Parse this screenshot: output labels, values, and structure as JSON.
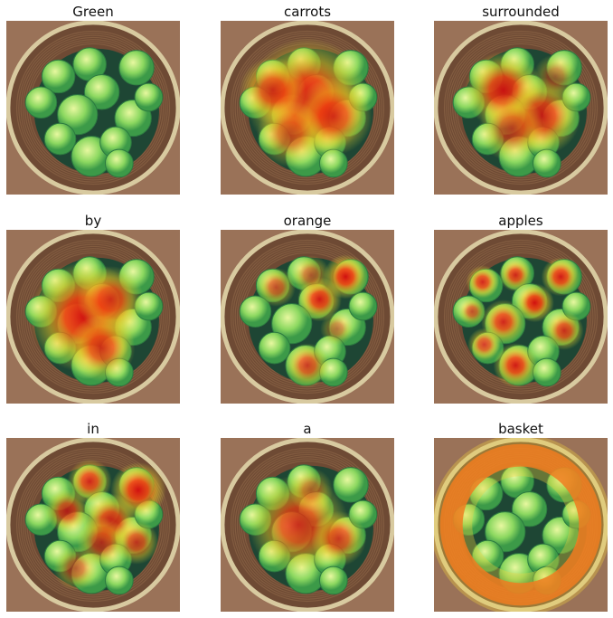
{
  "figure": {
    "panels": [
      {
        "title": "Green",
        "focus": "green-apples",
        "hotspots": []
      },
      {
        "title": "carrots",
        "focus": "center-diffuse",
        "hotspots": [
          [
            0.5,
            0.45,
            0.22,
            1.0
          ],
          [
            0.3,
            0.4,
            0.12,
            0.8
          ],
          [
            0.65,
            0.55,
            0.14,
            0.8
          ],
          [
            0.4,
            0.65,
            0.12,
            0.6
          ]
        ]
      },
      {
        "title": "surrounded",
        "focus": "center-ring",
        "hotspots": [
          [
            0.4,
            0.4,
            0.14,
            0.95
          ],
          [
            0.62,
            0.55,
            0.14,
            0.9
          ],
          [
            0.45,
            0.62,
            0.12,
            0.7
          ],
          [
            0.7,
            0.32,
            0.08,
            0.5
          ]
        ]
      },
      {
        "title": "by",
        "focus": "center-apples",
        "hotspots": [
          [
            0.45,
            0.5,
            0.2,
            1.0
          ],
          [
            0.6,
            0.4,
            0.12,
            0.8
          ],
          [
            0.55,
            0.68,
            0.12,
            0.8
          ]
        ]
      },
      {
        "title": "orange",
        "focus": "scattered-apples",
        "hotspots": [
          [
            0.72,
            0.27,
            0.08,
            1.0
          ],
          [
            0.57,
            0.4,
            0.08,
            0.95
          ],
          [
            0.32,
            0.33,
            0.07,
            0.7
          ],
          [
            0.52,
            0.26,
            0.07,
            0.6
          ],
          [
            0.5,
            0.78,
            0.08,
            0.8
          ],
          [
            0.67,
            0.57,
            0.06,
            0.5
          ]
        ]
      },
      {
        "title": "apples",
        "focus": "each-apple",
        "hotspots": [
          [
            0.28,
            0.3,
            0.06,
            0.9
          ],
          [
            0.47,
            0.26,
            0.06,
            0.9
          ],
          [
            0.73,
            0.27,
            0.07,
            0.95
          ],
          [
            0.58,
            0.42,
            0.07,
            1.0
          ],
          [
            0.4,
            0.53,
            0.08,
            0.9
          ],
          [
            0.75,
            0.58,
            0.07,
            0.85
          ],
          [
            0.47,
            0.78,
            0.08,
            0.95
          ],
          [
            0.29,
            0.66,
            0.06,
            0.8
          ],
          [
            0.22,
            0.47,
            0.05,
            0.7
          ]
        ]
      },
      {
        "title": "in",
        "focus": "apples-top",
        "hotspots": [
          [
            0.48,
            0.25,
            0.08,
            0.9
          ],
          [
            0.76,
            0.3,
            0.1,
            1.0
          ],
          [
            0.35,
            0.42,
            0.08,
            0.8
          ],
          [
            0.6,
            0.48,
            0.1,
            0.9
          ],
          [
            0.75,
            0.6,
            0.08,
            0.8
          ],
          [
            0.4,
            0.75,
            0.08,
            0.6
          ],
          [
            0.55,
            0.6,
            0.09,
            0.7
          ]
        ]
      },
      {
        "title": "a",
        "focus": "center-apples",
        "hotspots": [
          [
            0.45,
            0.5,
            0.18,
            0.85
          ],
          [
            0.68,
            0.58,
            0.1,
            0.8
          ],
          [
            0.52,
            0.3,
            0.08,
            0.5
          ]
        ]
      },
      {
        "title": "basket",
        "focus": "basket-rim",
        "ring": [
          0.5,
          0.5,
          0.4,
          0.1
        ]
      }
    ]
  }
}
